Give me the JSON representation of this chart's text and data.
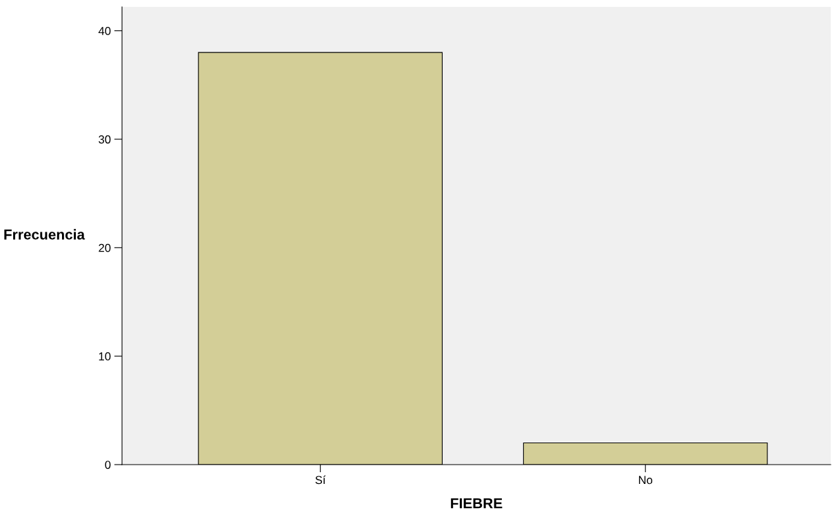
{
  "chart_data": {
    "type": "bar",
    "categories": [
      "Sí",
      "No"
    ],
    "values": [
      38,
      2
    ],
    "color": "#d3ce97",
    "xlabel": "FIEBRE",
    "ylabel": "Frrecuencia",
    "ylim": [
      0,
      42.2
    ],
    "yticks": [
      0,
      10,
      20,
      30,
      40
    ],
    "grid": false,
    "legend": false
  }
}
